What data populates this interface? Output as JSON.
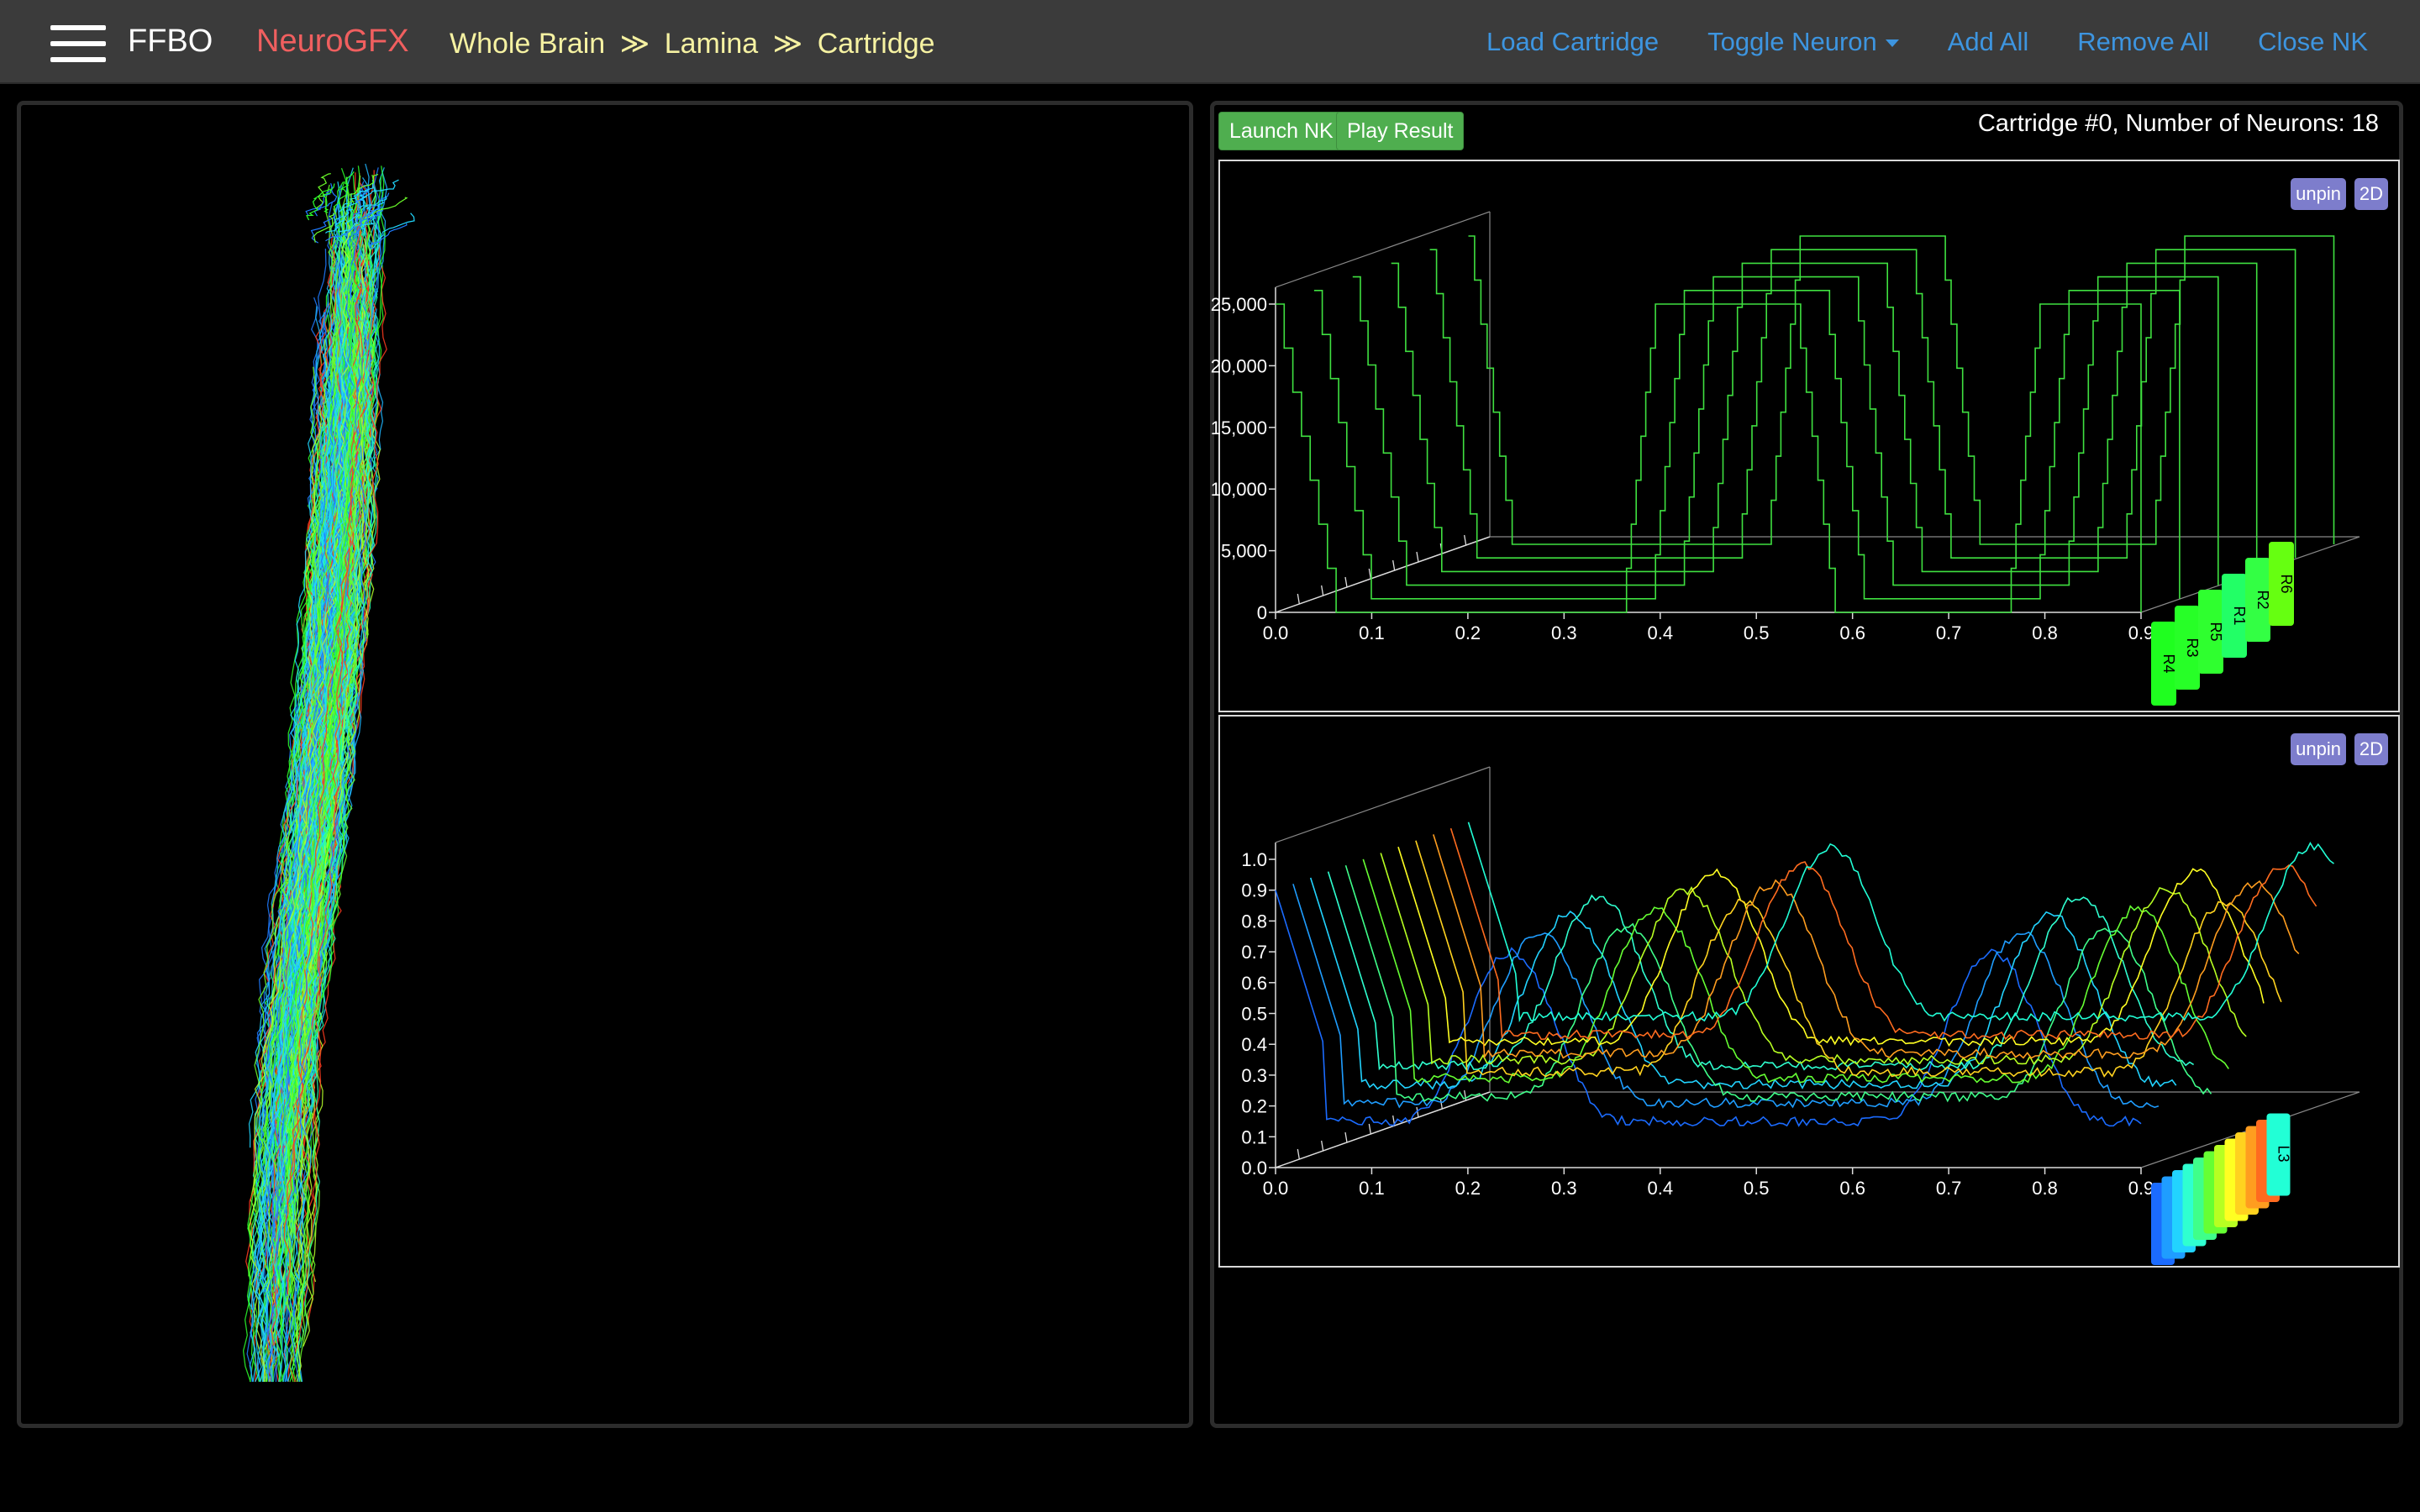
{
  "navbar": {
    "brand": "FFBO",
    "app_name": "NeuroGFX",
    "breadcrumb": [
      "Whole Brain",
      "Lamina",
      "Cartridge"
    ],
    "breadcrumb_sep": "≫",
    "links": [
      "Load Cartridge",
      "Toggle Neuron",
      "Add All",
      "Remove All",
      "Close NK"
    ]
  },
  "toolbar": {
    "launch_label": "Launch NK",
    "play_label": "Play Result",
    "status": "Cartridge #0, Number of Neurons: 18"
  },
  "plot_controls": {
    "unpin_label": "unpin",
    "twod_label": "2D"
  },
  "colors": {
    "navbar_bg": "#3b3b3b",
    "app_name": "#f05f5f",
    "breadcrumb": "#f6f2a2",
    "nav_link": "#3d95e0",
    "green_button": "#4fae4f",
    "pill": "#7d7dcc",
    "trace_green": "#3fe040"
  },
  "chart_data": [
    {
      "type": "line",
      "panel": "top",
      "title": "",
      "xlabel": "",
      "ylabel": "",
      "xlim": [
        0.0,
        0.9
      ],
      "ylim": [
        0,
        25000
      ],
      "x_ticks": [
        "0.0",
        "0.1",
        "0.2",
        "0.3",
        "0.4",
        "0.5",
        "0.6",
        "0.7",
        "0.8",
        "0.9"
      ],
      "y_ticks": [
        "0",
        "5,000",
        "10,000",
        "15,000",
        "20,000",
        "25,000"
      ],
      "depth_axis": true,
      "series": [
        {
          "name": "R4",
          "color": "#1fff1f",
          "levels": [
            25000,
            0,
            0,
            25000,
            25000,
            0,
            0,
            25000,
            25000,
            0
          ],
          "x": [
            0.0,
            0.18,
            0.36,
            0.46,
            0.54,
            0.66,
            0.76,
            0.86,
            0.9,
            0.9
          ]
        },
        {
          "name": "R3",
          "color": "#27ff27",
          "levels": [
            25000,
            0,
            0,
            25000,
            25000,
            0,
            0,
            25000,
            25000,
            0
          ],
          "x": [
            0.0,
            0.17,
            0.35,
            0.45,
            0.53,
            0.65,
            0.75,
            0.85,
            0.9,
            0.9
          ]
        },
        {
          "name": "R5",
          "color": "#2fff2f",
          "levels": [
            25000,
            0,
            0,
            25000,
            25000,
            0,
            0,
            25000,
            25000,
            0
          ],
          "x": [
            0.0,
            0.16,
            0.34,
            0.44,
            0.52,
            0.64,
            0.74,
            0.84,
            0.9,
            0.9
          ]
        },
        {
          "name": "R1",
          "color": "#22ff66",
          "levels": [
            25000,
            0,
            0,
            25000,
            25000,
            0,
            0,
            25000,
            25000,
            0
          ],
          "x": [
            0.0,
            0.15,
            0.33,
            0.43,
            0.51,
            0.63,
            0.73,
            0.83,
            0.9,
            0.9
          ]
        },
        {
          "name": "R2",
          "color": "#33ff44",
          "levels": [
            25000,
            0,
            0,
            25000,
            25000,
            0,
            0,
            25000,
            25000,
            0
          ],
          "x": [
            0.0,
            0.14,
            0.32,
            0.42,
            0.5,
            0.62,
            0.72,
            0.82,
            0.9,
            0.9
          ]
        },
        {
          "name": "R6",
          "color": "#66ff11",
          "levels": [
            25000,
            0,
            0,
            25000,
            25000,
            0,
            0,
            25000,
            25000,
            0
          ],
          "x": [
            0.0,
            0.13,
            0.31,
            0.41,
            0.49,
            0.61,
            0.71,
            0.81,
            0.9,
            0.9
          ]
        }
      ]
    },
    {
      "type": "line",
      "panel": "bottom",
      "title": "",
      "xlabel": "",
      "ylabel": "",
      "xlim": [
        0.0,
        0.9
      ],
      "ylim": [
        0.0,
        1.0
      ],
      "x_ticks": [
        "0.0",
        "0.1",
        "0.2",
        "0.3",
        "0.4",
        "0.5",
        "0.6",
        "0.7",
        "0.8",
        "0.9"
      ],
      "y_ticks": [
        "0.0",
        "0.1",
        "0.2",
        "0.3",
        "0.4",
        "0.5",
        "0.6",
        "0.7",
        "0.8",
        "0.9",
        "1.0"
      ],
      "depth_axis": true,
      "legend_labels": [
        "L3"
      ],
      "series_count": 12,
      "palette": [
        "#1b6bff",
        "#1f9dff",
        "#22d3ff",
        "#2fffd0",
        "#3fff8a",
        "#66ff33",
        "#b7ff22",
        "#ffff22",
        "#ffd21f",
        "#ff9d1f",
        "#ff6b1f",
        "#22ffd6"
      ]
    }
  ]
}
